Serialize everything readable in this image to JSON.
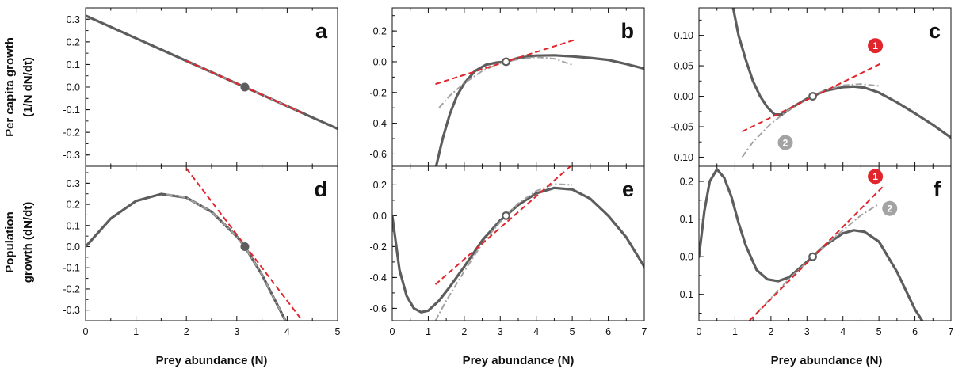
{
  "colors": {
    "curve": "#5d5d5d",
    "tangent": "#e0262c",
    "approx": "#a3a3a3",
    "badge1": "#e0262c",
    "badge2": "#a3a3a3",
    "axis": "#111111"
  },
  "labels": {
    "ylabel_top_line1": "Per capita growth",
    "ylabel_top_line2": "(1/N dN/dt)",
    "ylabel_bottom_line1": "Population",
    "ylabel_bottom_line2": "growth (dN/dt)",
    "xlabel": "Prey abundance (N)"
  },
  "badges": {
    "one": "1",
    "two": "2"
  },
  "chart_data": [
    {
      "panel": "a",
      "type": "line",
      "xlim": [
        0,
        5
      ],
      "ylim": [
        -0.35,
        0.35
      ],
      "xticks": [
        "0",
        "1",
        "2",
        "3",
        "4",
        "5"
      ],
      "yticks": [
        "0.3",
        "0.2",
        "0.1",
        "0.0",
        "-0.1",
        "-0.2",
        "-0.3"
      ],
      "series": [
        {
          "role": "curve",
          "x": [
            0,
            1,
            2,
            3,
            4,
            5
          ],
          "y": [
            0.316,
            0.216,
            0.116,
            0.016,
            -0.084,
            -0.184
          ]
        },
        {
          "role": "tangent",
          "x": [
            2,
            4.3
          ],
          "y": [
            0.116,
            -0.114
          ]
        },
        {
          "role": "approx",
          "x": [
            2,
            4.3
          ],
          "y": [
            0.116,
            -0.114
          ]
        }
      ],
      "equilibrium": {
        "x": 3.16,
        "y": 0.0,
        "filled": true
      }
    },
    {
      "panel": "b",
      "type": "line",
      "xlim": [
        0,
        7
      ],
      "ylim": [
        -0.68,
        0.35
      ],
      "xticks": [
        "0",
        "1",
        "2",
        "3",
        "4",
        "5",
        "6",
        "7"
      ],
      "yticks": [
        "0.2",
        "0.0",
        "-0.2",
        "-0.4",
        "-0.6"
      ],
      "series": [
        {
          "role": "curve",
          "x": [
            1.22,
            1.4,
            1.6,
            1.8,
            2.0,
            2.3,
            2.6,
            2.9,
            3.16,
            3.5,
            4.0,
            4.5,
            5.0,
            5.5,
            6.0,
            6.5,
            7.0
          ],
          "y": [
            -0.68,
            -0.5,
            -0.34,
            -0.22,
            -0.14,
            -0.06,
            -0.02,
            -0.005,
            0.0,
            0.025,
            0.04,
            0.042,
            0.035,
            0.025,
            0.012,
            -0.015,
            -0.045
          ]
        },
        {
          "role": "tangent",
          "x": [
            1.2,
            5.1
          ],
          "y": [
            -0.145,
            0.145
          ]
        },
        {
          "role": "approx",
          "x": [
            1.3,
            1.6,
            2.0,
            2.5,
            3.0,
            3.16,
            3.6,
            4.0,
            4.5,
            5.0
          ],
          "y": [
            -0.3,
            -0.22,
            -0.14,
            -0.06,
            -0.01,
            0.0,
            0.02,
            0.03,
            0.02,
            -0.02
          ]
        }
      ],
      "equilibrium": {
        "x": 3.16,
        "y": 0.0,
        "filled": false
      }
    },
    {
      "panel": "c",
      "type": "line",
      "xlim": [
        0,
        7
      ],
      "ylim": [
        -0.115,
        0.145
      ],
      "xticks": [
        "0",
        "1",
        "2",
        "3",
        "4",
        "5",
        "6",
        "7"
      ],
      "yticks": [
        "0.10",
        "0.05",
        "0.00",
        "-0.05",
        "-0.10"
      ],
      "series": [
        {
          "role": "curve",
          "x": [
            0.95,
            1.1,
            1.3,
            1.5,
            1.7,
            1.9,
            2.1,
            2.3,
            2.6,
            3.0,
            3.16,
            3.5,
            4.0,
            4.3,
            4.6,
            5.0,
            5.5,
            6.0,
            6.5,
            7.0
          ],
          "y": [
            0.145,
            0.1,
            0.06,
            0.025,
            0.0,
            -0.018,
            -0.03,
            -0.03,
            -0.018,
            -0.004,
            0.0,
            0.009,
            0.015,
            0.016,
            0.014,
            0.006,
            -0.01,
            -0.028,
            -0.047,
            -0.068
          ]
        },
        {
          "role": "tangent",
          "x": [
            1.2,
            5.1
          ],
          "y": [
            -0.058,
            0.055
          ]
        },
        {
          "role": "approx",
          "x": [
            1.2,
            1.5,
            2.0,
            2.5,
            3.0,
            3.16,
            3.5,
            4.0,
            4.5,
            5.0
          ],
          "y": [
            -0.1,
            -0.075,
            -0.045,
            -0.022,
            -0.005,
            0.0,
            0.01,
            0.018,
            0.02,
            0.017
          ]
        }
      ],
      "equilibrium": {
        "x": 3.16,
        "y": 0.0,
        "filled": false
      },
      "badges": [
        {
          "label": "1",
          "x": 4.9,
          "y": 0.083,
          "role": "tangent"
        },
        {
          "label": "2",
          "x": 2.4,
          "y": -0.076,
          "role": "approx"
        }
      ]
    },
    {
      "panel": "d",
      "type": "line",
      "xlim": [
        0,
        5
      ],
      "ylim": [
        -0.35,
        0.38
      ],
      "xticks": [
        "0",
        "1",
        "2",
        "3",
        "4",
        "5"
      ],
      "yticks": [
        "0.3",
        "0.2",
        "0.1",
        "0.0",
        "-0.1",
        "-0.2",
        "-0.3"
      ],
      "series": [
        {
          "role": "curve",
          "x": [
            0,
            0.5,
            1,
            1.5,
            2,
            2.5,
            3,
            3.16,
            3.5,
            4,
            4.05
          ],
          "y": [
            0.0,
            0.133,
            0.216,
            0.249,
            0.232,
            0.165,
            0.048,
            0.0,
            -0.133,
            -0.366,
            -0.39
          ]
        },
        {
          "role": "tangent",
          "x": [
            2.0,
            4.3
          ],
          "y": [
            0.37,
            -0.35
          ]
        },
        {
          "role": "approx",
          "x": [
            1.6,
            2.0,
            2.5,
            3.0,
            3.16,
            3.5,
            4.0
          ],
          "y": [
            0.248,
            0.232,
            0.165,
            0.048,
            0.0,
            -0.133,
            -0.366
          ]
        }
      ],
      "equilibrium": {
        "x": 3.16,
        "y": 0.0,
        "filled": true
      }
    },
    {
      "panel": "e",
      "type": "line",
      "xlim": [
        0,
        7
      ],
      "ylim": [
        -0.68,
        0.32
      ],
      "xticks": [
        "0",
        "1",
        "2",
        "3",
        "4",
        "5",
        "6",
        "7"
      ],
      "yticks": [
        "0.2",
        "0.0",
        "-0.2",
        "-0.4",
        "-0.6"
      ],
      "series": [
        {
          "role": "curve",
          "x": [
            0,
            0.2,
            0.4,
            0.6,
            0.8,
            1.0,
            1.3,
            1.6,
            2.0,
            2.5,
            3.0,
            3.16,
            3.5,
            4.0,
            4.5,
            5.0,
            5.5,
            6.0,
            6.5,
            7.0
          ],
          "y": [
            0.0,
            -0.35,
            -0.52,
            -0.6,
            -0.625,
            -0.615,
            -0.55,
            -0.46,
            -0.33,
            -0.16,
            -0.03,
            0.0,
            0.07,
            0.145,
            0.18,
            0.17,
            0.11,
            0.0,
            -0.14,
            -0.33
          ]
        },
        {
          "role": "tangent",
          "x": [
            1.2,
            5.0
          ],
          "y": [
            -0.445,
            0.33
          ]
        },
        {
          "role": "approx",
          "x": [
            1.2,
            1.5,
            2.0,
            2.5,
            3.0,
            3.16,
            3.5,
            4.0,
            4.5,
            5.0
          ],
          "y": [
            -0.68,
            -0.55,
            -0.36,
            -0.18,
            -0.04,
            0.0,
            0.08,
            0.16,
            0.205,
            0.2
          ]
        }
      ],
      "equilibrium": {
        "x": 3.16,
        "y": 0.0,
        "filled": false
      }
    },
    {
      "panel": "f",
      "type": "line",
      "xlim": [
        0,
        7
      ],
      "ylim": [
        -0.17,
        0.24
      ],
      "xticks": [
        "0",
        "1",
        "2",
        "3",
        "4",
        "5",
        "6",
        "7"
      ],
      "yticks": [
        "0.2",
        "0.1",
        "0.0",
        "-0.1"
      ],
      "series": [
        {
          "role": "curve",
          "x": [
            0,
            0.15,
            0.3,
            0.5,
            0.7,
            0.9,
            1.1,
            1.3,
            1.6,
            1.9,
            2.2,
            2.5,
            2.8,
            3.16,
            3.5,
            4.0,
            4.3,
            4.6,
            5.0,
            5.5,
            6.0,
            6.2
          ],
          "y": [
            0.0,
            0.12,
            0.2,
            0.232,
            0.21,
            0.16,
            0.09,
            0.03,
            -0.035,
            -0.06,
            -0.065,
            -0.055,
            -0.03,
            0.0,
            0.03,
            0.062,
            0.07,
            0.066,
            0.04,
            -0.04,
            -0.14,
            -0.17
          ]
        },
        {
          "role": "tangent",
          "x": [
            1.4,
            5.1
          ],
          "y": [
            -0.17,
            0.185
          ]
        },
        {
          "role": "approx",
          "x": [
            1.6,
            2.0,
            2.5,
            3.0,
            3.16,
            3.5,
            4.0,
            4.5,
            5.0
          ],
          "y": [
            -0.15,
            -0.11,
            -0.06,
            -0.015,
            0.0,
            0.03,
            0.07,
            0.11,
            0.14
          ]
        }
      ],
      "equilibrium": {
        "x": 3.16,
        "y": 0.0,
        "filled": false
      },
      "badges": [
        {
          "label": "1",
          "x": 4.9,
          "y": 0.213,
          "role": "tangent"
        },
        {
          "label": "2",
          "x": 5.3,
          "y": 0.128,
          "role": "approx"
        }
      ]
    }
  ]
}
